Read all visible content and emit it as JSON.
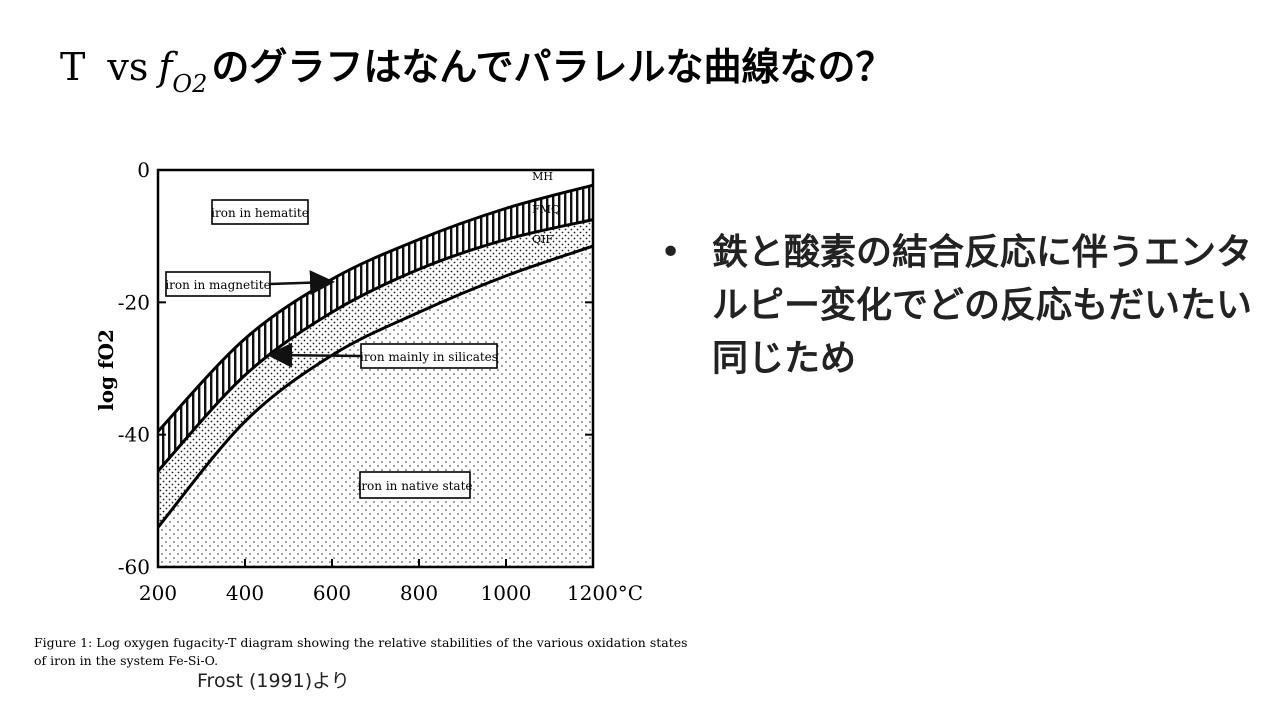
{
  "slide": {
    "title_T": "T",
    "title_vs": "vs",
    "title_f": "f",
    "title_sub": "O2",
    "title_rest": "のグラフはなんでパラレルな曲線なの？",
    "bullet_marker": "•",
    "bullet_text": "鉄と酸素の結合反応に伴うエンタルピー変化でどの反応もだいたい同じため",
    "caption": "Figure 1:  Log oxygen fugacity-T diagram showing the relative stabilities of the various oxidation states of iron in the system Fe-Si-O.",
    "source": "Frost (1991)より"
  },
  "chart_data": {
    "type": "line",
    "ylabel": "log fO2",
    "xlim": [
      200,
      1200
    ],
    "ylim": [
      -60,
      0
    ],
    "x_ticks": [
      "200",
      "400",
      "600",
      "800",
      "1000",
      "1200°C"
    ],
    "y_ticks": [
      "0",
      "-20",
      "-40",
      "-60"
    ],
    "series": [
      {
        "name": "MH",
        "x": [
          200,
          400,
          600,
          800,
          1000,
          1200
        ],
        "y": [
          -39.5,
          -25.5,
          -16.5,
          -10.5,
          -5.8,
          -2.3
        ]
      },
      {
        "name": "FMQ",
        "x": [
          200,
          400,
          600,
          800,
          1000,
          1200
        ],
        "y": [
          -45.5,
          -31,
          -21.5,
          -15,
          -10.5,
          -7.5
        ]
      },
      {
        "name": "QIF",
        "x": [
          200,
          400,
          600,
          800,
          1000,
          1200
        ],
        "y": [
          -54,
          -38,
          -28,
          -21.5,
          -16,
          -11.5
        ]
      }
    ],
    "fields": [
      {
        "name": "iron in hematite"
      },
      {
        "name": "iron in magnetite"
      },
      {
        "name": "iron mainly in silicates"
      },
      {
        "name": "iron in native state"
      }
    ]
  }
}
